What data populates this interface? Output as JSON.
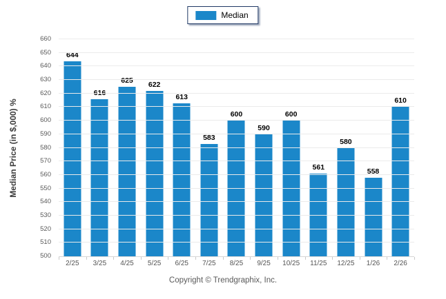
{
  "legend": {
    "label": "Median",
    "swatch_color": "#1b87c9"
  },
  "chart_data": {
    "type": "bar",
    "title": "",
    "xlabel": "",
    "ylabel": "Median Price (in $,000) %",
    "categories": [
      "2/25",
      "3/25",
      "4/25",
      "5/25",
      "6/25",
      "7/25",
      "8/25",
      "9/25",
      "10/25",
      "11/25",
      "12/25",
      "1/26",
      "2/26"
    ],
    "series": [
      {
        "name": "Median",
        "values": [
          644,
          616,
          625,
          622,
          613,
          583,
          600,
          590,
          600,
          561,
          580,
          558,
          610
        ]
      }
    ],
    "ylim": [
      500,
      660
    ],
    "y_tick_step": 10,
    "grid": true,
    "legend_position": "top",
    "bar_color": "#1b87c9"
  },
  "footer": {
    "copyright": "Copyright © Trendgraphix, Inc."
  }
}
